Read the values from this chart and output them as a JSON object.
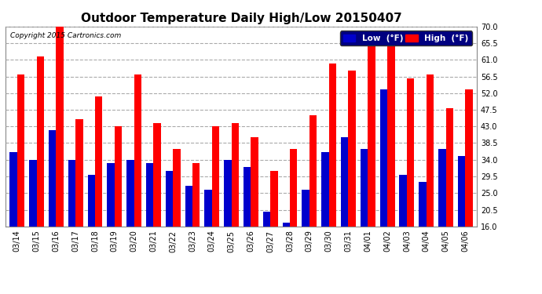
{
  "title": "Outdoor Temperature Daily High/Low 20150407",
  "copyright": "Copyright 2015 Cartronics.com",
  "ylim": [
    16.0,
    70.0
  ],
  "yticks": [
    16.0,
    20.5,
    25.0,
    29.5,
    34.0,
    38.5,
    43.0,
    47.5,
    52.0,
    56.5,
    61.0,
    65.5,
    70.0
  ],
  "dates": [
    "03/14",
    "03/15",
    "03/16",
    "03/17",
    "03/18",
    "03/19",
    "03/20",
    "03/21",
    "03/22",
    "03/23",
    "03/24",
    "03/25",
    "03/26",
    "03/27",
    "03/28",
    "03/29",
    "03/30",
    "03/31",
    "04/01",
    "04/02",
    "04/03",
    "04/04",
    "04/05",
    "04/06"
  ],
  "lows": [
    36,
    34,
    42,
    34,
    30,
    33,
    34,
    33,
    31,
    27,
    26,
    34,
    32,
    20,
    17,
    26,
    36,
    40,
    37,
    53,
    30,
    28,
    37,
    35
  ],
  "highs": [
    57,
    62,
    70,
    45,
    51,
    43,
    57,
    44,
    37,
    33,
    43,
    44,
    40,
    31,
    37,
    46,
    60,
    58,
    65,
    66,
    56,
    57,
    48,
    53
  ],
  "low_color": "#0000cc",
  "high_color": "#ff0000",
  "bg_color": "#ffffff",
  "plot_bg_color": "#ffffff",
  "grid_color": "#aaaaaa",
  "title_fontsize": 11,
  "tick_fontsize": 7,
  "legend_low_label": "Low  (°F)",
  "legend_high_label": "High  (°F)",
  "bar_width": 0.38,
  "ybase": 16.0
}
